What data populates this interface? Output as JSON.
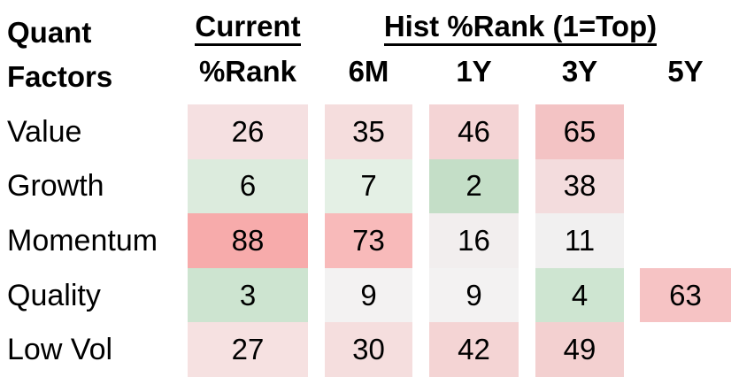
{
  "header": {
    "quant_line1": "Quant",
    "quant_line2": "Factors",
    "current": "Current",
    "hist": "Hist %Rank (1=Top)",
    "sub": {
      "rank": "%Rank",
      "m6": "6M",
      "y1": "1Y",
      "y3": "3Y",
      "y5": "5Y"
    }
  },
  "rows": [
    {
      "label": "Value",
      "cells": [
        {
          "v": "26",
          "bg": "#f5e0e1"
        },
        {
          "v": "35",
          "bg": "#f5dddd"
        },
        {
          "v": "46",
          "bg": "#f4d4d5"
        },
        {
          "v": "65",
          "bg": "#f3c3c4"
        },
        {
          "v": "",
          "bg": ""
        }
      ]
    },
    {
      "label": "Growth",
      "cells": [
        {
          "v": "6",
          "bg": "#dcebdd"
        },
        {
          "v": "7",
          "bg": "#e4f0e5"
        },
        {
          "v": "2",
          "bg": "#c4dec7"
        },
        {
          "v": "38",
          "bg": "#f3dcdd"
        },
        {
          "v": "",
          "bg": ""
        }
      ]
    },
    {
      "label": "Momentum",
      "cells": [
        {
          "v": "88",
          "bg": "#f7abab"
        },
        {
          "v": "73",
          "bg": "#f8baba"
        },
        {
          "v": "16",
          "bg": "#f2eeee"
        },
        {
          "v": "11",
          "bg": "#f1f0f0"
        },
        {
          "v": "",
          "bg": ""
        }
      ]
    },
    {
      "label": "Quality",
      "cells": [
        {
          "v": "3",
          "bg": "#cde4d0"
        },
        {
          "v": "9",
          "bg": "#f3f2f2"
        },
        {
          "v": "9",
          "bg": "#f3f2f2"
        },
        {
          "v": "4",
          "bg": "#cee5d1"
        },
        {
          "v": "63",
          "bg": "#f6c3c4"
        }
      ]
    },
    {
      "label": "Low Vol",
      "cells": [
        {
          "v": "27",
          "bg": "#f6e1e1"
        },
        {
          "v": "30",
          "bg": "#f5dede"
        },
        {
          "v": "42",
          "bg": "#f4d4d4"
        },
        {
          "v": "49",
          "bg": "#f3d0d0"
        },
        {
          "v": "",
          "bg": ""
        }
      ]
    }
  ],
  "colors": {
    "text": "#000000",
    "background": "#ffffff",
    "heat_low_green": "#c4dec7",
    "heat_mid_white": "#f1f0f0",
    "heat_high_red": "#f7abab"
  },
  "chart_data": {
    "type": "heatmap",
    "title": "Quant Factors",
    "column_groups": [
      {
        "label": "Current",
        "columns": [
          "%Rank"
        ]
      },
      {
        "label": "Hist %Rank (1=Top)",
        "columns": [
          "6M",
          "1Y",
          "3Y",
          "5Y"
        ]
      }
    ],
    "columns": [
      "%Rank",
      "6M",
      "1Y",
      "3Y",
      "5Y"
    ],
    "rows": [
      "Value",
      "Growth",
      "Momentum",
      "Quality",
      "Low Vol"
    ],
    "values": [
      [
        26,
        35,
        46,
        65,
        null
      ],
      [
        6,
        7,
        2,
        38,
        null
      ],
      [
        88,
        73,
        16,
        11,
        null
      ],
      [
        3,
        9,
        9,
        4,
        63
      ],
      [
        27,
        30,
        42,
        49,
        null
      ]
    ],
    "scale_note": "1=Top; green = low percentile rank (top), red = high percentile rank",
    "value_range": [
      1,
      100
    ],
    "legend_position": "none",
    "grid": false
  }
}
